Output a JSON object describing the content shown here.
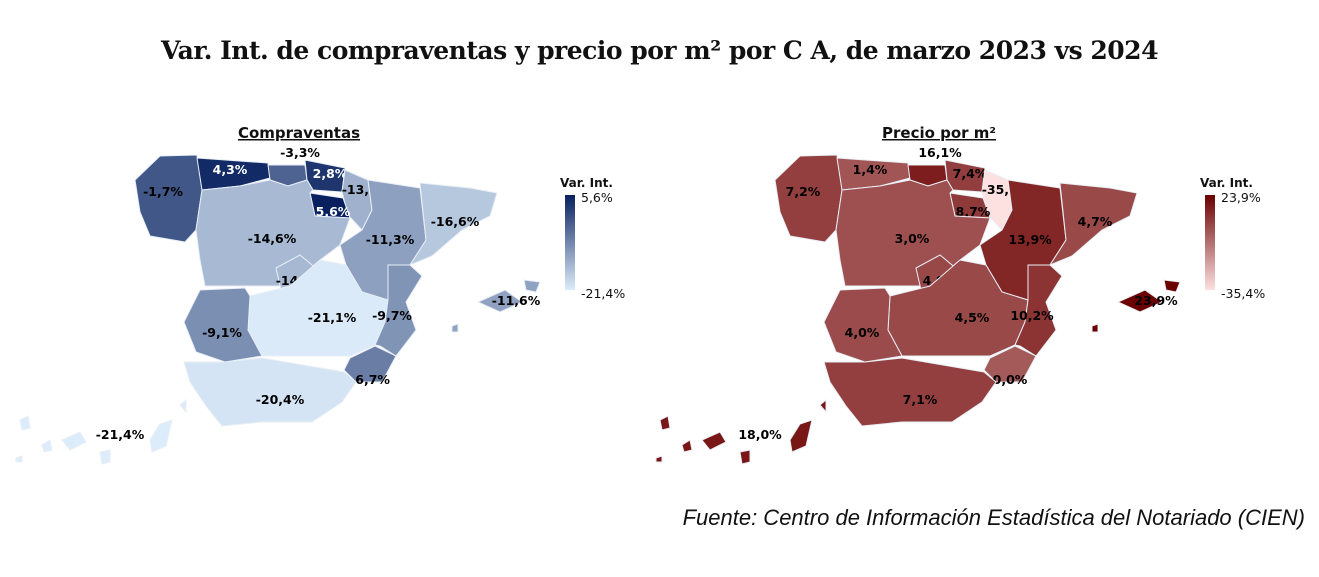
{
  "title": "Var. Int. de compraventas y precio por m² por C A, de marzo 2023 vs 2024",
  "source": "Fuente: Centro de Información Estadística del Notariado (CIEN)",
  "maps": [
    {
      "title": "Compraventas",
      "legend": {
        "title": "Var. Int.",
        "max_label": "5,6%",
        "min_label": "-21,4%",
        "max": 5.6,
        "min": -21.4,
        "color_low": "#dcecfa",
        "color_high": "#08205e"
      },
      "regions": [
        {
          "name": "Galicia",
          "value": -1.7,
          "label": "-1,7%"
        },
        {
          "name": "Asturias",
          "value": 4.3,
          "label": "4,3%"
        },
        {
          "name": "Cantabria",
          "value": -3.3,
          "label": "-3,3%"
        },
        {
          "name": "País Vasco",
          "value": 2.8,
          "label": "2,8%"
        },
        {
          "name": "Navarra",
          "value": -13.6,
          "label": "-13,6%"
        },
        {
          "name": "La Rioja",
          "value": 5.6,
          "label": "5,6%"
        },
        {
          "name": "Castilla y León",
          "value": -14.6,
          "label": "-14,6%"
        },
        {
          "name": "Aragón",
          "value": -11.3,
          "label": "-11,3%"
        },
        {
          "name": "Cataluña",
          "value": -16.6,
          "label": "-16,6%"
        },
        {
          "name": "Madrid",
          "value": -14.5,
          "label": "-14,5%"
        },
        {
          "name": "Castilla-La Mancha",
          "value": -21.1,
          "label": "-21,1%"
        },
        {
          "name": "C. Valenciana",
          "value": -9.7,
          "label": "-9,7%"
        },
        {
          "name": "Baleares",
          "value": -11.6,
          "label": "-11,6%"
        },
        {
          "name": "Extremadura",
          "value": -9.1,
          "label": "-9,1%"
        },
        {
          "name": "Murcia",
          "value": -6.7,
          "label": "-6,7%"
        },
        {
          "name": "Andalucía",
          "value": -20.4,
          "label": "-20,4%"
        },
        {
          "name": "Canarias",
          "value": -21.4,
          "label": "-21,4%"
        }
      ]
    },
    {
      "title": "Precio por m²",
      "legend": {
        "title": "Var. Int.",
        "max_label": "23,9%",
        "min_label": "-35,4%",
        "max": 23.9,
        "min": -35.4,
        "color_low": "#fde0e0",
        "color_high": "#6a0000"
      },
      "regions": [
        {
          "name": "Galicia",
          "value": 7.2,
          "label": "7,2%"
        },
        {
          "name": "Asturias",
          "value": 1.4,
          "label": "1,4%"
        },
        {
          "name": "Cantabria",
          "value": 16.1,
          "label": "16,1%"
        },
        {
          "name": "País Vasco",
          "value": 7.4,
          "label": "7,4%"
        },
        {
          "name": "Navarra",
          "value": -35.4,
          "label": "-35,4%"
        },
        {
          "name": "La Rioja",
          "value": 8.7,
          "label": "8,7%"
        },
        {
          "name": "Castilla y León",
          "value": 3.0,
          "label": "3,0%"
        },
        {
          "name": "Aragón",
          "value": 13.9,
          "label": "13,9%"
        },
        {
          "name": "Cataluña",
          "value": 4.7,
          "label": "4,7%"
        },
        {
          "name": "Madrid",
          "value": 4.9,
          "label": "4,9%"
        },
        {
          "name": "Castilla-La Mancha",
          "value": 4.5,
          "label": "4,5%"
        },
        {
          "name": "C. Valenciana",
          "value": 10.2,
          "label": "10,2%"
        },
        {
          "name": "Baleares",
          "value": 23.9,
          "label": "23,9%"
        },
        {
          "name": "Extremadura",
          "value": 4.0,
          "label": "4,0%"
        },
        {
          "name": "Murcia",
          "value": 0.0,
          "label": "0,0%"
        },
        {
          "name": "Andalucía",
          "value": 7.1,
          "label": "7,1%"
        },
        {
          "name": "Canarias",
          "value": 18.0,
          "label": "18,0%"
        }
      ]
    }
  ]
}
